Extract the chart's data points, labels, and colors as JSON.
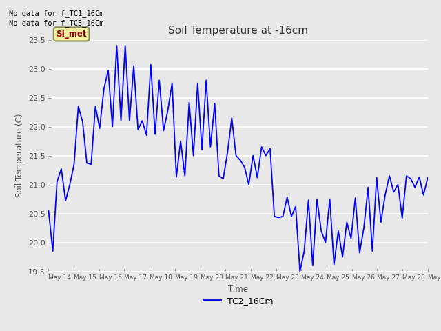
{
  "title": "Soil Temperature at -16cm",
  "ylabel": "Soil Temperature (C)",
  "xlabel": "Time",
  "ylim": [
    19.5,
    23.5
  ],
  "plot_bg_color": "#e8e8e8",
  "fig_bg_color": "#e8e8e8",
  "line_color": "blue",
  "legend_label": "TC2_16Cm",
  "text_no_data_1": "No data for f_TC1_16Cm",
  "text_no_data_2": "No data for f_TC3_16Cm",
  "si_met_label": "SI_met",
  "x_tick_labels": [
    "May 14",
    "May 15",
    "May 16",
    "May 17",
    "May 18",
    "May 19",
    "May 20",
    "May 21",
    "May 22",
    "May 23",
    "May 24",
    "May 25",
    "May 26",
    "May 27",
    "May 28",
    "May 29"
  ],
  "y_values": [
    20.55,
    19.85,
    21.05,
    21.27,
    20.72,
    21.0,
    21.35,
    22.35,
    22.08,
    21.37,
    21.35,
    22.35,
    21.97,
    22.65,
    22.97,
    22.0,
    23.4,
    22.1,
    23.4,
    22.1,
    23.05,
    21.95,
    22.1,
    21.85,
    23.07,
    21.87,
    22.8,
    21.93,
    22.28,
    22.75,
    21.13,
    21.75,
    21.15,
    22.42,
    21.5,
    22.75,
    21.6,
    22.8,
    21.65,
    22.4,
    21.15,
    21.1,
    21.55,
    22.15,
    21.5,
    21.42,
    21.3,
    21.0,
    21.5,
    21.12,
    21.65,
    21.5,
    21.62,
    20.45,
    20.43,
    20.45,
    20.78,
    20.45,
    20.62,
    19.5,
    19.85,
    20.73,
    19.6,
    20.75,
    20.2,
    20.0,
    20.75,
    19.62,
    20.2,
    19.75,
    20.35,
    20.07,
    20.77,
    19.82,
    20.25,
    20.95,
    19.85,
    21.12,
    20.35,
    20.82,
    21.15,
    20.87,
    21.0,
    20.42,
    21.15,
    21.1,
    20.95,
    21.13,
    20.82,
    21.12
  ],
  "n_points": 90
}
